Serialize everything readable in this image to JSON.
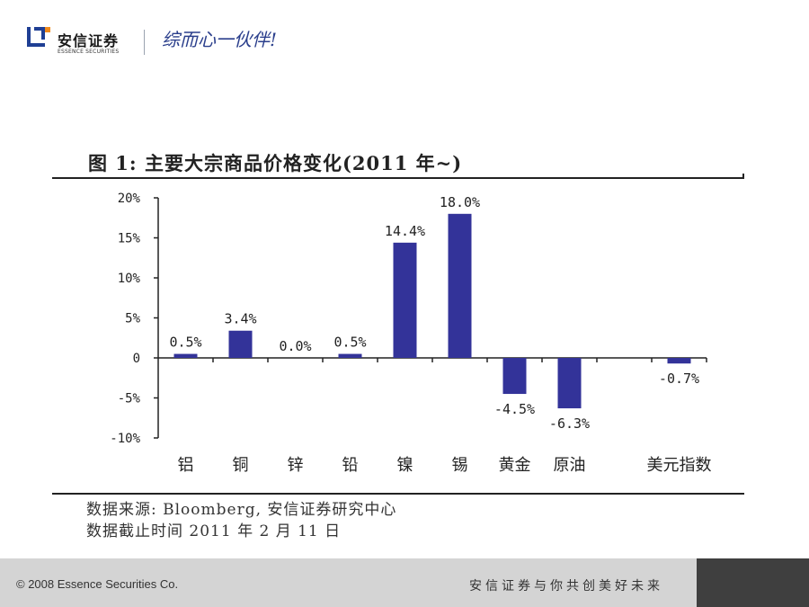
{
  "header": {
    "brand_cn": "安信证券",
    "brand_en": "ESSENCE SECURITIES",
    "slogan": "综而心一伙伴!"
  },
  "figure": {
    "title": "图 1:  主要大宗商品价格变化(2011 年~)",
    "source_line1": "数据来源: Bloomberg, 安信证券研究中心",
    "source_line2": "数据截止时间 2011 年 2 月 11 日"
  },
  "footer": {
    "copyright": "© 2008 Essence Securities Co.",
    "slogan": "安信证券与你共创美好未来"
  },
  "colors": {
    "bar": "#333399",
    "footer_gray": "#d4d4d4",
    "footer_dark": "#3f3f3f",
    "logo_blue": "#1f3f94",
    "logo_orange": "#f08a1c"
  },
  "chart_data": {
    "type": "bar",
    "categories": [
      "铝",
      "铜",
      "锌",
      "铅",
      "镍",
      "锡",
      "黄金",
      "原油",
      "",
      "美元指数"
    ],
    "values": [
      0.5,
      3.4,
      0.0,
      0.5,
      14.4,
      18.0,
      -4.5,
      -6.3,
      null,
      -0.7
    ],
    "data_labels": [
      "0.5%",
      "3.4%",
      "0.0%",
      "0.5%",
      "14.4%",
      "18.0%",
      "-4.5%",
      "-6.3%",
      "",
      "-0.7%"
    ],
    "ylim": [
      -10,
      20
    ],
    "yticks": [
      20,
      15,
      10,
      5,
      0,
      -5,
      -10
    ],
    "ytick_labels": [
      "20%",
      "15%",
      "10%",
      "5%",
      "0",
      "-5%",
      "-10%"
    ],
    "xlabel": "",
    "ylabel": "",
    "grid": false,
    "legend": "none"
  }
}
